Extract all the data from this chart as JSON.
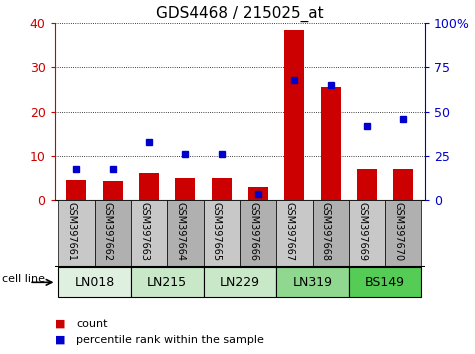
{
  "title": "GDS4468 / 215025_at",
  "samples": [
    "GSM397661",
    "GSM397662",
    "GSM397663",
    "GSM397664",
    "GSM397665",
    "GSM397666",
    "GSM397667",
    "GSM397668",
    "GSM397669",
    "GSM397670"
  ],
  "count": [
    4.5,
    4.2,
    6.0,
    5.0,
    5.0,
    3.0,
    38.5,
    25.5,
    7.0,
    7.0
  ],
  "percentile": [
    17.5,
    17.5,
    33.0,
    26.0,
    26.0,
    3.5,
    68.0,
    65.0,
    42.0,
    46.0
  ],
  "cell_lines": [
    {
      "label": "LN018",
      "start": 0,
      "end": 2,
      "color": "#e0f0e0"
    },
    {
      "label": "LN215",
      "start": 2,
      "end": 4,
      "color": "#c8e8c8"
    },
    {
      "label": "LN229",
      "start": 4,
      "end": 6,
      "color": "#c8e8c8"
    },
    {
      "label": "LN319",
      "start": 6,
      "end": 8,
      "color": "#90d890"
    },
    {
      "label": "BS149",
      "start": 8,
      "end": 10,
      "color": "#55cc55"
    }
  ],
  "sample_bg_colors": [
    "#c8c8c8",
    "#b0b0b0"
  ],
  "bar_color": "#cc0000",
  "dot_color": "#0000cc",
  "left_ylim": [
    0,
    40
  ],
  "right_ylim": [
    0,
    100
  ],
  "left_yticks": [
    0,
    10,
    20,
    30,
    40
  ],
  "right_yticks": [
    0,
    25,
    50,
    75,
    100
  ],
  "right_yticklabels": [
    "0",
    "25",
    "50",
    "75",
    "100%"
  ],
  "bar_width": 0.55,
  "cell_line_label": "cell line",
  "legend_count": "count",
  "legend_pct": "percentile rank within the sample",
  "left_tick_color": "#cc0000",
  "right_tick_color": "#0000cc",
  "title_fontsize": 11,
  "axis_tick_fontsize": 9,
  "sample_fontsize": 7,
  "cell_line_fontsize": 9
}
